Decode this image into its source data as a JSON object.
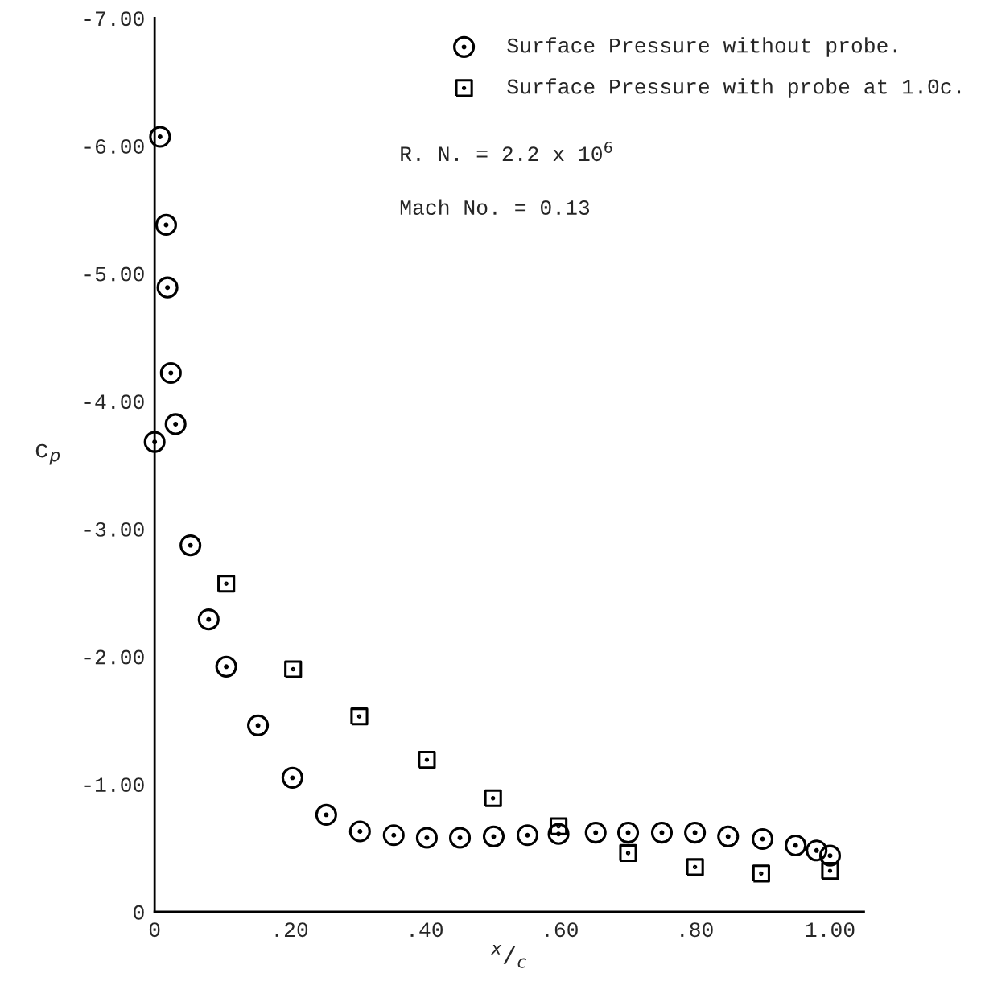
{
  "chart_data": {
    "type": "scatter",
    "xlabel": "$^{x}$/$_{c}$",
    "ylabel": "c$_{p}$",
    "xlim": [
      0,
      1.05
    ],
    "ylim": [
      0,
      -7.0
    ],
    "xticks": [
      0,
      {
        "value": 0.2,
        "label": ".20"
      },
      {
        "value": 0.4,
        "label": ".40"
      },
      {
        "value": 0.6,
        "label": ".60"
      },
      {
        "value": 0.8,
        "label": ".80"
      },
      {
        "value": 1.0,
        "label": "1.00"
      }
    ],
    "yticks": [
      0,
      {
        "value": -1,
        "label": "-1.00"
      },
      {
        "value": -2,
        "label": "-2.00"
      },
      {
        "value": -3,
        "label": "-3.00"
      },
      {
        "value": -4,
        "label": "-4.00"
      },
      {
        "value": -5,
        "label": "-5.00"
      },
      {
        "value": -6,
        "label": "-6.00"
      },
      {
        "value": -7,
        "label": "-7.00"
      }
    ],
    "grid": false,
    "legend": "top right",
    "annotations": [
      "R. N. = 2.2 x 10$^{6}$",
      "Mach No. = 0.13"
    ],
    "series": [
      {
        "name": "Surface Pressure without probe.",
        "color": "#000000",
        "marker": "circle",
        "x": [
          0.0,
          0.008,
          0.017,
          0.019,
          0.024,
          0.031,
          0.053,
          0.08,
          0.106,
          0.153,
          0.204,
          0.254,
          0.304,
          0.354,
          0.403,
          0.452,
          0.502,
          0.552,
          0.598,
          0.653,
          0.701,
          0.751,
          0.8,
          0.849,
          0.9,
          0.949,
          0.98,
          1.0
        ],
        "values": [
          -3.68,
          -6.07,
          -5.38,
          -4.89,
          -4.22,
          -3.82,
          -2.87,
          -2.29,
          -1.92,
          -1.46,
          -1.05,
          -0.76,
          -0.63,
          -0.6,
          -0.58,
          -0.58,
          -0.59,
          -0.6,
          -0.61,
          -0.62,
          -0.62,
          -0.62,
          -0.62,
          -0.59,
          -0.57,
          -0.52,
          -0.48,
          -0.44
        ]
      },
      {
        "name": "Surface Pressure with probe at 1.0c.",
        "color": "#000000",
        "marker": "square",
        "x": [
          0.106,
          0.205,
          0.303,
          0.403,
          0.501,
          0.598,
          0.701,
          0.8,
          0.898,
          1.0
        ],
        "values": [
          -2.57,
          -1.9,
          -1.53,
          -1.19,
          -0.89,
          -0.67,
          -0.46,
          -0.35,
          -0.3,
          -0.32
        ]
      }
    ]
  }
}
